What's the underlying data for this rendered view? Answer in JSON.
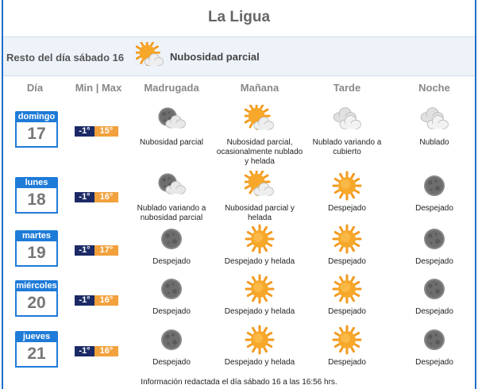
{
  "location": "La Ligua",
  "rest_of_day": {
    "label": "Resto del día sábado 16",
    "icon": "partly-cloudy-icon",
    "description": "Nubosidad parcial"
  },
  "columns": [
    "Día",
    "Min | Max",
    "Madrugada",
    "Mañana",
    "Tarde",
    "Noche"
  ],
  "days": [
    {
      "weekday": "domingo",
      "date": "17",
      "min": "-1°",
      "max": "15°",
      "periods": [
        {
          "icon": "moon-cloud-icon",
          "text": "Nubosidad parcial"
        },
        {
          "icon": "partly-cloudy-icon",
          "text": "Nubosidad parcial, ocasionalmente nublado y helada"
        },
        {
          "icon": "cloudy-icon",
          "text": "Nublado variando a cubierto"
        },
        {
          "icon": "cloudy-icon",
          "text": "Nublado"
        }
      ]
    },
    {
      "weekday": "lunes",
      "date": "18",
      "min": "-1°",
      "max": "16°",
      "periods": [
        {
          "icon": "moon-cloud-icon",
          "text": "Nublado variando a nubosidad parcial"
        },
        {
          "icon": "partly-cloudy-icon",
          "text": "Nubosidad parcial y helada"
        },
        {
          "icon": "sun-icon",
          "text": "Despejado"
        },
        {
          "icon": "moon-icon",
          "text": "Despejado"
        }
      ]
    },
    {
      "weekday": "martes",
      "date": "19",
      "min": "-1°",
      "max": "17°",
      "periods": [
        {
          "icon": "moon-icon",
          "text": "Despejado"
        },
        {
          "icon": "sun-icon",
          "text": "Despejado y helada"
        },
        {
          "icon": "sun-icon",
          "text": "Despejado"
        },
        {
          "icon": "moon-icon",
          "text": "Despejado"
        }
      ]
    },
    {
      "weekday": "miércoles",
      "date": "20",
      "min": "-1°",
      "max": "16°",
      "periods": [
        {
          "icon": "moon-icon",
          "text": "Despejado"
        },
        {
          "icon": "sun-icon",
          "text": "Despejado y helada"
        },
        {
          "icon": "sun-icon",
          "text": "Despejado"
        },
        {
          "icon": "moon-icon",
          "text": "Despejado"
        }
      ]
    },
    {
      "weekday": "jueves",
      "date": "21",
      "min": "-1°",
      "max": "16°",
      "periods": [
        {
          "icon": "moon-icon",
          "text": "Despejado"
        },
        {
          "icon": "sun-icon",
          "text": "Despejado y helada"
        },
        {
          "icon": "sun-icon",
          "text": "Despejado"
        },
        {
          "icon": "moon-icon",
          "text": "Despejado"
        }
      ]
    }
  ],
  "footer": "Información redactada el día sábado 16 a las 16:56 hrs.",
  "colors": {
    "frame": "#1e6fc9",
    "calendar": "#1f7bd8",
    "min_badge": "#1b2a66",
    "max_badge": "#f2a13c",
    "sun": "#f39a1e"
  }
}
